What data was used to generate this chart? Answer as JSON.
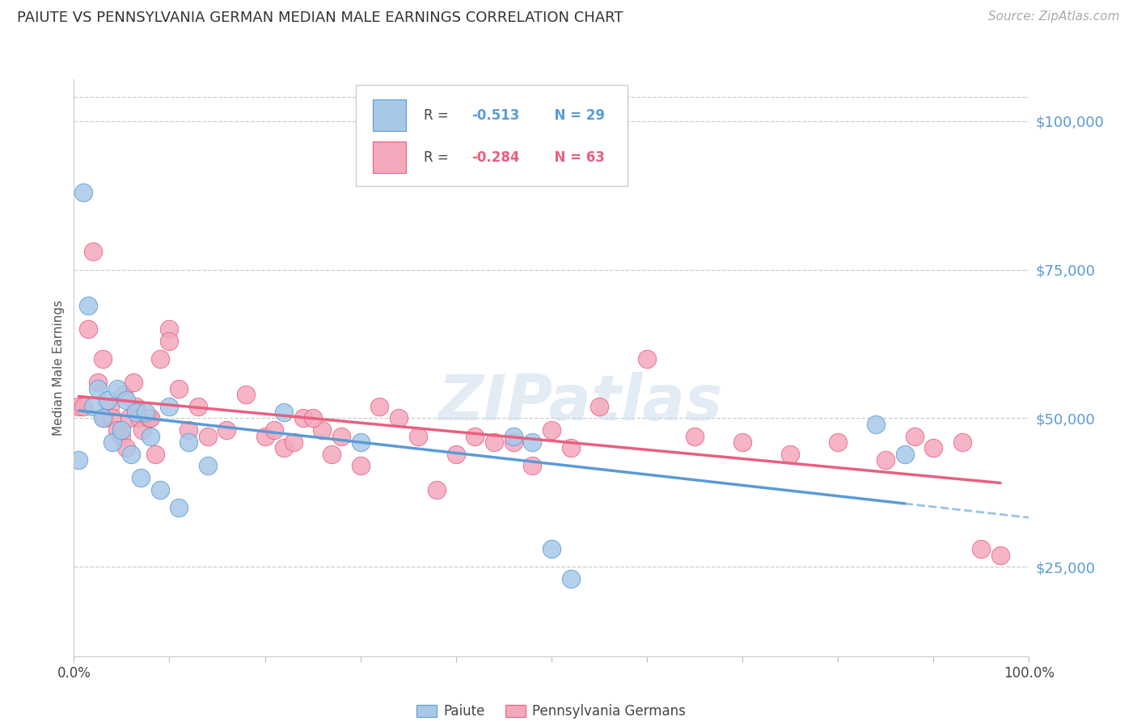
{
  "title": "PAIUTE VS PENNSYLVANIA GERMAN MEDIAN MALE EARNINGS CORRELATION CHART",
  "source": "Source: ZipAtlas.com",
  "ylabel": "Median Male Earnings",
  "ytick_labels": [
    "$25,000",
    "$50,000",
    "$75,000",
    "$100,000"
  ],
  "ytick_values": [
    25000,
    50000,
    75000,
    100000
  ],
  "ymin": 10000,
  "ymax": 107000,
  "xmin": 0.0,
  "xmax": 1.0,
  "paiute_color": "#a8c8e8",
  "penn_color": "#f4a8bc",
  "paiute_line_color": "#5b9bd5",
  "penn_line_color": "#e86080",
  "background_color": "#ffffff",
  "watermark": "ZIPatlas",
  "paiute_R": -0.513,
  "paiute_N": 29,
  "penn_R": -0.284,
  "penn_N": 63,
  "paiute_x": [
    0.005,
    0.01,
    0.015,
    0.02,
    0.025,
    0.03,
    0.035,
    0.04,
    0.045,
    0.05,
    0.055,
    0.06,
    0.065,
    0.07,
    0.075,
    0.08,
    0.09,
    0.1,
    0.11,
    0.12,
    0.14,
    0.22,
    0.3,
    0.46,
    0.48,
    0.5,
    0.52,
    0.84,
    0.87
  ],
  "paiute_y": [
    43000,
    88000,
    69000,
    52000,
    55000,
    50000,
    53000,
    46000,
    55000,
    48000,
    53000,
    44000,
    51000,
    40000,
    51000,
    47000,
    38000,
    52000,
    35000,
    46000,
    42000,
    51000,
    46000,
    47000,
    46000,
    28000,
    23000,
    49000,
    44000
  ],
  "penn_x": [
    0.005,
    0.01,
    0.015,
    0.02,
    0.025,
    0.03,
    0.032,
    0.038,
    0.04,
    0.045,
    0.05,
    0.052,
    0.055,
    0.058,
    0.062,
    0.065,
    0.068,
    0.072,
    0.078,
    0.085,
    0.09,
    0.1,
    0.11,
    0.12,
    0.13,
    0.14,
    0.16,
    0.18,
    0.2,
    0.22,
    0.24,
    0.26,
    0.28,
    0.3,
    0.32,
    0.34,
    0.36,
    0.38,
    0.4,
    0.42,
    0.44,
    0.46,
    0.48,
    0.5,
    0.52,
    0.55,
    0.6,
    0.65,
    0.7,
    0.75,
    0.8,
    0.85,
    0.88,
    0.9,
    0.93,
    0.95,
    0.97,
    0.21,
    0.23,
    0.25,
    0.27,
    0.1,
    0.08
  ],
  "penn_y": [
    52000,
    52000,
    65000,
    78000,
    56000,
    60000,
    50000,
    52000,
    50000,
    48000,
    47000,
    54000,
    45000,
    50000,
    56000,
    52000,
    50000,
    48000,
    50000,
    44000,
    60000,
    65000,
    55000,
    48000,
    52000,
    47000,
    48000,
    54000,
    47000,
    45000,
    50000,
    48000,
    47000,
    42000,
    52000,
    50000,
    47000,
    38000,
    44000,
    47000,
    46000,
    46000,
    42000,
    48000,
    45000,
    52000,
    60000,
    47000,
    46000,
    44000,
    46000,
    43000,
    47000,
    45000,
    46000,
    28000,
    27000,
    48000,
    46000,
    50000,
    44000,
    63000,
    50000
  ]
}
